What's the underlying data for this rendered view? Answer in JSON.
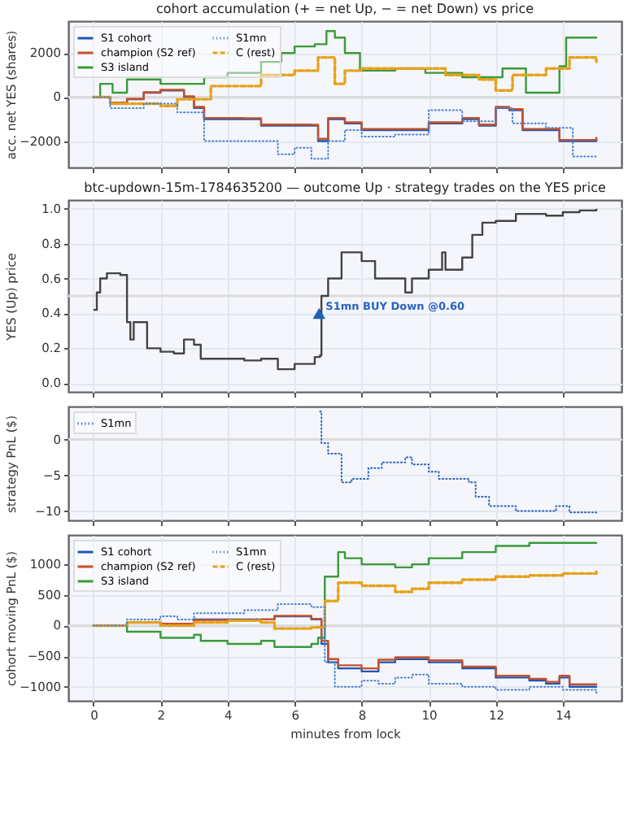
{
  "chart_data": [
    {
      "type": "step",
      "title": "cohort accumulation (+ = net Up, − = net Down) vs price",
      "ylabel": "acc. net YES (shares)",
      "xlim": [
        -0.75,
        15.75
      ],
      "xticks": [
        0,
        2,
        4,
        6,
        8,
        10,
        12,
        14
      ],
      "ylim": [
        -3200,
        3450
      ],
      "yticks": [
        {
          "value": -2000,
          "label": "−2000"
        },
        0,
        2000
      ],
      "tick_labels": "y",
      "grid": true,
      "legend": "top left",
      "ref_lines": [
        {
          "axis": "y",
          "value": 0,
          "color": "#dcdcdc"
        }
      ],
      "series": [
        {
          "name": "S1 cohort",
          "color": "#1f57b5",
          "x": [
            0,
            0.5,
            1.0,
            1.5,
            2.0,
            2.7,
            3.0,
            3.3,
            4.5,
            5.0,
            6.5,
            6.7,
            7.0,
            7.5,
            8.0,
            9.3,
            10.0,
            11.0,
            11.5,
            12.0,
            12.4,
            12.8,
            13.5,
            13.9,
            15.0
          ],
          "values": [
            0,
            -300,
            -100,
            200,
            300,
            0,
            -500,
            -1000,
            -1000,
            -1300,
            -1300,
            -2000,
            -1000,
            -1200,
            -1500,
            -1500,
            -1200,
            -1000,
            -1300,
            -500,
            -600,
            -1500,
            -1500,
            -2000,
            -1900
          ]
        },
        {
          "name": "champion (S2 ref)",
          "color": "#c8502a",
          "x": [
            0,
            0.5,
            1.0,
            1.5,
            2.0,
            2.7,
            3.0,
            3.3,
            4.5,
            5.0,
            6.5,
            6.7,
            7.0,
            7.5,
            8.0,
            9.3,
            10.0,
            11.0,
            11.5,
            12.0,
            12.4,
            12.8,
            13.5,
            13.9,
            15.0
          ],
          "values": [
            0,
            -250,
            -80,
            220,
            330,
            30,
            -450,
            -950,
            -960,
            -1250,
            -1260,
            -1900,
            -950,
            -1150,
            -1450,
            -1450,
            -1150,
            -950,
            -1250,
            -450,
            -550,
            -1450,
            -1450,
            -1950,
            -1850
          ]
        },
        {
          "name": "S3 island",
          "color": "#3a9a3a",
          "x": [
            0,
            0.2,
            0.57,
            1.0,
            2.0,
            3.3,
            4.0,
            5.0,
            5.6,
            6.0,
            6.6,
            6.95,
            7.2,
            7.5,
            7.95,
            9.0,
            9.9,
            11.0,
            12.2,
            12.9,
            13.6,
            13.9,
            14.1,
            15.0
          ],
          "values": [
            0,
            600,
            200,
            800,
            600,
            900,
            1100,
            1600,
            2000,
            2300,
            2400,
            3000,
            2700,
            2000,
            1200,
            1300,
            1100,
            900,
            1300,
            200,
            200,
            1400,
            2700,
            2700
          ]
        },
        {
          "name": "S1mn",
          "color": "#4a80d4",
          "line_style": "dotted",
          "x": [
            0,
            0.5,
            1.5,
            2.5,
            3.3,
            5.0,
            5.5,
            6.0,
            6.5,
            7.0,
            7.5,
            8.0,
            9.0,
            10.0,
            11.0,
            12.0,
            12.5,
            13.5,
            14.3,
            15.0
          ],
          "values": [
            0,
            -500,
            -300,
            -700,
            -2000,
            -2000,
            -2600,
            -2300,
            -2800,
            -2000,
            -1500,
            -1800,
            -1700,
            -600,
            -1100,
            -500,
            -1200,
            -1400,
            -2700,
            -2700
          ]
        },
        {
          "name": "C (rest)",
          "color": "#e6a21a",
          "line_style": "dashed",
          "x": [
            0,
            0.5,
            2.0,
            2.5,
            3.5,
            5.0,
            6.0,
            6.7,
            7.2,
            7.5,
            8.0,
            10.0,
            10.5,
            11.5,
            12.0,
            12.5,
            13.5,
            14.2,
            15.0
          ],
          "values": [
            0,
            -300,
            -400,
            -100,
            500,
            1000,
            1200,
            1800,
            600,
            1200,
            1300,
            1300,
            1000,
            800,
            300,
            1000,
            1300,
            1800,
            1600
          ]
        }
      ]
    },
    {
      "type": "step",
      "title": "btc-updown-15m-1784635200 — outcome Up · strategy trades on the YES price",
      "ylabel": "YES (Up) price",
      "xlim": [
        -0.75,
        15.75
      ],
      "xticks": [
        0,
        2,
        4,
        6,
        8,
        10,
        12,
        14
      ],
      "ylim": [
        -0.05,
        1.05
      ],
      "yticks": [
        {
          "value": 0,
          "label": "0.0"
        },
        0.2,
        0.4,
        0.6,
        0.8,
        {
          "value": 1,
          "label": "1.0"
        }
      ],
      "tick_labels": "y",
      "grid": true,
      "ref_lines": [
        {
          "axis": "y",
          "value": 0.5,
          "color": "#dcdcdc"
        }
      ],
      "annotations": [
        {
          "text": "S1mn BUY Down @0.60",
          "x": 6.73,
          "y": 0.4
        }
      ],
      "series": [
        {
          "color": "#444444",
          "x": [
            0,
            0.1,
            0.2,
            0.4,
            0.8,
            1.0,
            1.1,
            1.2,
            1.5,
            1.6,
            2.0,
            2.4,
            2.7,
            3.0,
            3.2,
            3.5,
            4.5,
            5.0,
            5.5,
            6.0,
            6.3,
            6.6,
            6.76,
            6.8,
            7.0,
            7.4,
            8.0,
            8.4,
            9.0,
            9.3,
            9.5,
            10.0,
            10.4,
            10.5,
            11.0,
            11.3,
            11.6,
            12.0,
            12.6,
            13.5,
            14.0,
            14.5,
            15.0
          ],
          "values": [
            0.42,
            0.52,
            0.6,
            0.63,
            0.62,
            0.35,
            0.25,
            0.35,
            0.35,
            0.2,
            0.18,
            0.17,
            0.25,
            0.22,
            0.14,
            0.14,
            0.13,
            0.14,
            0.08,
            0.11,
            0.11,
            0.15,
            0.16,
            0.5,
            0.6,
            0.75,
            0.7,
            0.6,
            0.6,
            0.52,
            0.6,
            0.65,
            0.75,
            0.65,
            0.72,
            0.85,
            0.92,
            0.93,
            0.97,
            0.96,
            0.98,
            0.99,
            1.0
          ]
        },
        {
          "type": "scatter",
          "marker": "triangle",
          "color": "#1f5fb4",
          "x": [
            6.73
          ],
          "values": [
            0.4
          ]
        }
      ]
    },
    {
      "type": "step",
      "ylabel": "strategy PnL ($)",
      "xlim": [
        -0.75,
        15.75
      ],
      "xticks": [
        0,
        2,
        4,
        6,
        8,
        10,
        12,
        14
      ],
      "ylim": [
        -11.3,
        4.6
      ],
      "yticks": [
        {
          "value": -10,
          "label": "−10"
        },
        {
          "value": -5,
          "label": "−5"
        },
        0
      ],
      "tick_labels": "y",
      "grid": true,
      "legend": "top left",
      "ref_lines": [
        {
          "axis": "y",
          "value": 0,
          "color": "#dcdcdc"
        }
      ],
      "series": [
        {
          "name": "S1mn",
          "color": "#2a62c0",
          "line_style": "dotted",
          "x": [
            6.76,
            6.8,
            7.0,
            7.4,
            7.7,
            8.2,
            8.6,
            9.3,
            9.5,
            10.0,
            10.3,
            11.2,
            11.4,
            11.8,
            12.6,
            13.8,
            14.2,
            15.0
          ],
          "values": [
            3.9,
            -0.5,
            -2,
            -6,
            -5.5,
            -4,
            -3.2,
            -2.5,
            -3.5,
            -4.5,
            -5.5,
            -6,
            -8,
            -9.3,
            -10,
            -9.3,
            -10.2,
            -10.3
          ]
        }
      ]
    },
    {
      "type": "step",
      "xlabel": "minutes from lock",
      "ylabel": "cohort moving PnL ($)",
      "xlim": [
        -0.75,
        15.75
      ],
      "xticks": [
        0,
        2,
        4,
        6,
        8,
        10,
        12,
        14
      ],
      "ylim": [
        -1230,
        1480
      ],
      "yticks": [
        {
          "value": -1000,
          "label": "−1000"
        },
        {
          "value": -500,
          "label": "−500"
        },
        0,
        500,
        1000
      ],
      "grid": true,
      "legend": "top left",
      "ref_lines": [
        {
          "axis": "y",
          "value": 0,
          "color": "#dcdcdc"
        }
      ],
      "series": [
        {
          "name": "S1 cohort",
          "color": "#1f57b5",
          "x": [
            0,
            1,
            2,
            3,
            4,
            5,
            5.4,
            6.5,
            6.8,
            7.0,
            7.3,
            8,
            8.5,
            9,
            10,
            11,
            12,
            13,
            13.5,
            13.9,
            14.2,
            15
          ],
          "values": [
            0,
            50,
            20,
            100,
            100,
            100,
            150,
            100,
            -300,
            -600,
            -700,
            -750,
            -600,
            -550,
            -600,
            -700,
            -850,
            -900,
            -950,
            -850,
            -1000,
            -1000
          ]
        },
        {
          "name": "champion (S2 ref)",
          "color": "#c8502a",
          "x": [
            0,
            1,
            2,
            3,
            4,
            5,
            5.4,
            6.5,
            6.8,
            7.0,
            7.3,
            8,
            8.5,
            9,
            10,
            11,
            12,
            13,
            13.5,
            13.9,
            14.2,
            15
          ],
          "values": [
            0,
            50,
            30,
            90,
            90,
            100,
            160,
            110,
            -250,
            -550,
            -650,
            -700,
            -560,
            -520,
            -570,
            -670,
            -820,
            -870,
            -920,
            -820,
            -960,
            -960
          ]
        },
        {
          "name": "S3 island",
          "color": "#3a9a3a",
          "x": [
            0,
            0.8,
            1.0,
            2.0,
            3.0,
            3.2,
            4.0,
            5.0,
            5.4,
            6.5,
            6.7,
            6.9,
            7.3,
            7.5,
            8.0,
            9.0,
            9.5,
            10.0,
            11.0,
            12.0,
            13.0,
            15.0
          ],
          "values": [
            0,
            0,
            -100,
            -200,
            -150,
            -250,
            -300,
            -250,
            -350,
            -300,
            -200,
            800,
            1200,
            1100,
            1000,
            950,
            1000,
            1100,
            1200,
            1300,
            1350,
            1350
          ]
        },
        {
          "name": "S1mn",
          "color": "#4a80d4",
          "line_style": "dotted",
          "x": [
            0,
            1,
            2,
            2.5,
            3,
            4.5,
            5.5,
            6.5,
            6.9,
            7.2,
            8,
            8.5,
            9,
            9.5,
            10,
            11,
            12,
            13,
            14,
            15
          ],
          "values": [
            0,
            100,
            150,
            100,
            200,
            250,
            350,
            300,
            -600,
            -1000,
            -900,
            -950,
            -850,
            -800,
            -950,
            -1000,
            -1050,
            -1000,
            -1050,
            -1100
          ]
        },
        {
          "name": "C (rest)",
          "color": "#e6a21a",
          "line_style": "dashed",
          "x": [
            0,
            1,
            2,
            3,
            4,
            5,
            5.4,
            6.5,
            6.9,
            7.3,
            8,
            9,
            9.5,
            10,
            11,
            12,
            13,
            14,
            15
          ],
          "values": [
            0,
            50,
            0,
            50,
            80,
            50,
            -50,
            -30,
            400,
            700,
            650,
            550,
            600,
            700,
            750,
            800,
            820,
            850,
            880
          ]
        }
      ]
    }
  ]
}
